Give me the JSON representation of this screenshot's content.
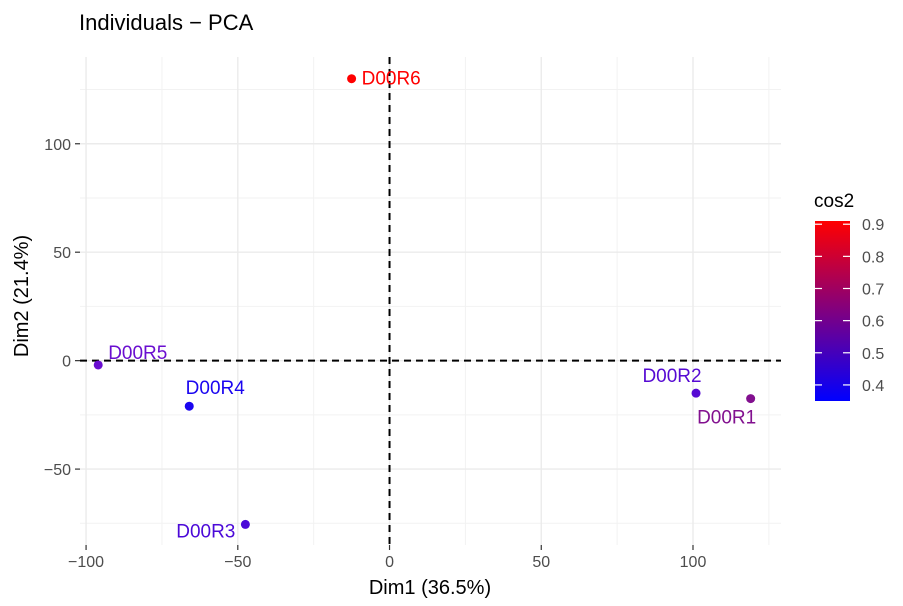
{
  "chart_data": {
    "type": "scatter",
    "title": "Individuals − PCA",
    "xlabel": "Dim1 (36.5%)",
    "ylabel": "Dim2 (21.4%)",
    "xlim": [
      -102,
      129
    ],
    "ylim": [
      -85,
      140
    ],
    "x_ticks": [
      -100,
      -50,
      0,
      50,
      100
    ],
    "x_tick_labels": [
      "−100",
      "−50",
      "0",
      "50",
      "100"
    ],
    "y_ticks": [
      -50,
      0,
      50,
      100
    ],
    "y_tick_labels": [
      "−50",
      "0",
      "50",
      "100"
    ],
    "grid": true,
    "reference_lines": {
      "x": 0,
      "y": 0,
      "style": "dashed"
    },
    "points": [
      {
        "label": "D00R6",
        "x": -12.5,
        "y": 130,
        "cos2": 0.9,
        "color": "#ff0000"
      },
      {
        "label": "D00R5",
        "x": -96,
        "y": -2,
        "cos2": 0.52,
        "color": "#6a0ed0"
      },
      {
        "label": "D00R4",
        "x": -66,
        "y": -21,
        "cos2": 0.38,
        "color": "#1b06f0"
      },
      {
        "label": "D00R3",
        "x": -47.5,
        "y": -75.5,
        "cos2": 0.46,
        "color": "#4b09d8"
      },
      {
        "label": "D00R2",
        "x": 101,
        "y": -15,
        "cos2": 0.5,
        "color": "#560ad3"
      },
      {
        "label": "D00R1",
        "x": 119,
        "y": -17.5,
        "cos2": 0.64,
        "color": "#82108f"
      }
    ],
    "legend": {
      "title": "cos2",
      "position": "right",
      "range": [
        0.35,
        0.91
      ],
      "ticks": [
        "0.4",
        "0.5",
        "0.6",
        "0.7",
        "0.8",
        "0.9"
      ],
      "tick_values": [
        0.4,
        0.5,
        0.6,
        0.7,
        0.8,
        0.9
      ],
      "colors": {
        "low": "#0000ff",
        "mid": "#800080",
        "high": "#ff0000"
      }
    }
  }
}
